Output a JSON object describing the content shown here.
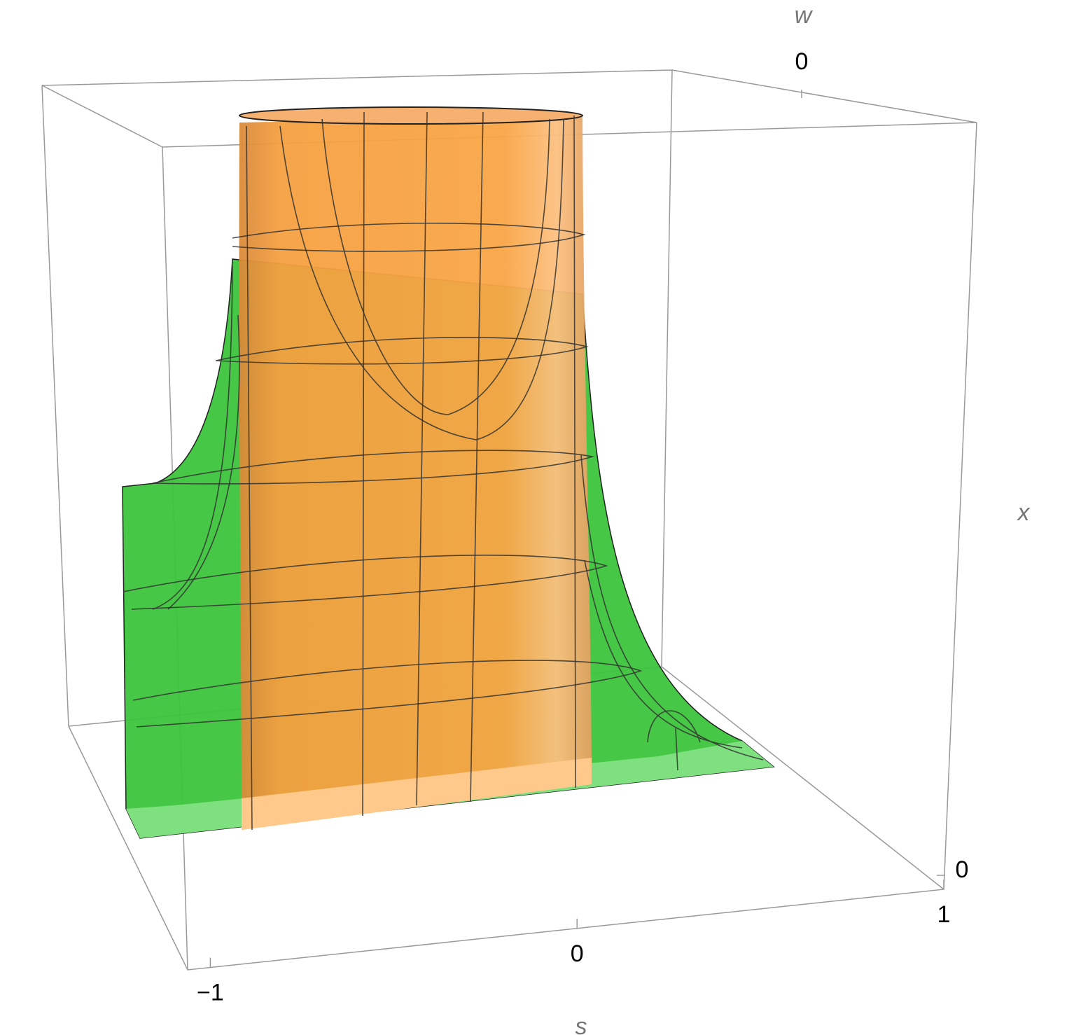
{
  "chart_data": {
    "type": "surface3d",
    "axes": {
      "s": {
        "label": "s",
        "ticks": [
          {
            "value": -1,
            "label": "−1"
          },
          0,
          1
        ]
      },
      "w": {
        "label": "w",
        "ticks": [
          0
        ]
      },
      "x": {
        "label": "x",
        "ticks": [
          0
        ]
      }
    }
  }
}
